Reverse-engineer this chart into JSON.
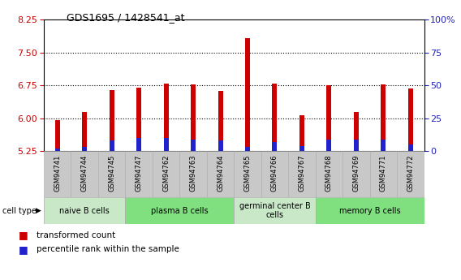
{
  "title": "GDS1695 / 1428541_at",
  "samples": [
    "GSM94741",
    "GSM94744",
    "GSM94745",
    "GSM94747",
    "GSM94762",
    "GSM94763",
    "GSM94764",
    "GSM94765",
    "GSM94766",
    "GSM94767",
    "GSM94768",
    "GSM94769",
    "GSM94771",
    "GSM94772"
  ],
  "transformed_count": [
    5.95,
    6.15,
    6.65,
    6.7,
    6.8,
    6.78,
    6.62,
    7.82,
    6.8,
    6.07,
    6.75,
    6.15,
    6.78,
    6.68
  ],
  "percentile_rank": [
    2,
    3,
    8,
    10,
    10,
    9,
    8,
    3,
    7,
    4,
    9,
    9,
    9,
    5
  ],
  "ylim_left": [
    5.25,
    8.25
  ],
  "yticks_left": [
    5.25,
    6.0,
    6.75,
    7.5,
    8.25
  ],
  "yticks_right": [
    0,
    25,
    50,
    75,
    100
  ],
  "cell_types": [
    {
      "label": "naive B cells",
      "start": 0,
      "end": 3,
      "color": "#c8e8c8"
    },
    {
      "label": "plasma B cells",
      "start": 3,
      "end": 7,
      "color": "#80e080"
    },
    {
      "label": "germinal center B\ncells",
      "start": 7,
      "end": 10,
      "color": "#c8e8c8"
    },
    {
      "label": "memory B cells",
      "start": 10,
      "end": 14,
      "color": "#80e080"
    }
  ],
  "bar_color_red": "#cc0000",
  "bar_color_blue": "#2222cc",
  "bar_width": 0.18,
  "baseline": 5.25,
  "tick_label_color_left": "#cc0000",
  "tick_label_color_right": "#2222bb",
  "grid_color": "black",
  "legend_red_label": "transformed count",
  "legend_blue_label": "percentile rank within the sample",
  "sample_box_color": "#c8c8c8",
  "sample_box_edge": "#aaaaaa"
}
